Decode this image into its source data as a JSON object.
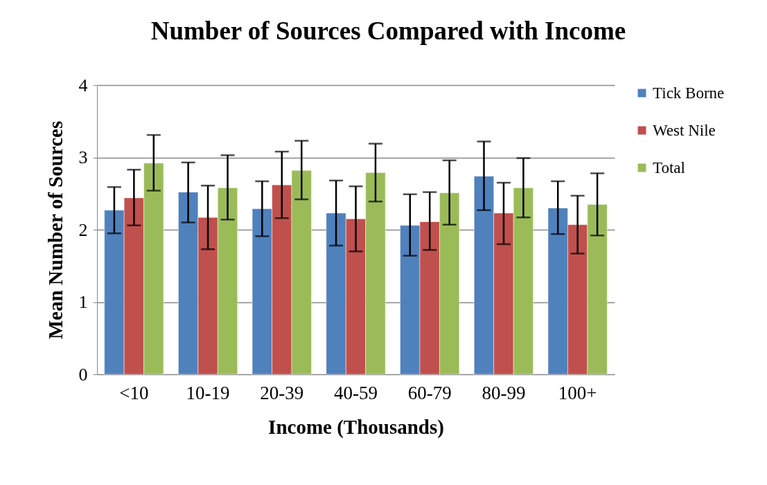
{
  "chart_data": {
    "type": "bar",
    "title": "Number of Sources Compared with Income",
    "xlabel": "Income (Thousands)",
    "ylabel": "Mean Number of Sources",
    "categories": [
      "<10",
      "10-19",
      "20-39",
      "40-59",
      "60-79",
      "80-99",
      "100+"
    ],
    "series": [
      {
        "name": "Tick Borne",
        "color": "#4f81bd",
        "values": [
          2.27,
          2.52,
          2.29,
          2.23,
          2.06,
          2.74,
          2.3
        ],
        "errors": [
          [
            1.95,
            2.59
          ],
          [
            2.1,
            2.93
          ],
          [
            1.91,
            2.67
          ],
          [
            1.78,
            2.68
          ],
          [
            1.64,
            2.49
          ],
          [
            2.27,
            3.22
          ],
          [
            1.94,
            2.67
          ]
        ]
      },
      {
        "name": "West Nile",
        "color": "#c0504d",
        "values": [
          2.44,
          2.17,
          2.62,
          2.15,
          2.11,
          2.23,
          2.07
        ],
        "errors": [
          [
            2.06,
            2.83
          ],
          [
            1.73,
            2.61
          ],
          [
            2.16,
            3.08
          ],
          [
            1.7,
            2.6
          ],
          [
            1.72,
            2.52
          ],
          [
            1.8,
            2.65
          ],
          [
            1.67,
            2.47
          ]
        ]
      },
      {
        "name": "Total",
        "color": "#9bbb59",
        "values": [
          2.92,
          2.58,
          2.82,
          2.79,
          2.51,
          2.58,
          2.35
        ],
        "errors": [
          [
            2.54,
            3.31
          ],
          [
            2.14,
            3.03
          ],
          [
            2.42,
            3.23
          ],
          [
            2.39,
            3.19
          ],
          [
            2.07,
            2.96
          ],
          [
            2.17,
            2.99
          ],
          [
            1.92,
            2.78
          ]
        ]
      }
    ],
    "ylim": [
      0,
      4
    ],
    "yticks": [
      0,
      1,
      2,
      3,
      4
    ],
    "grid": "y",
    "legend": "right"
  }
}
